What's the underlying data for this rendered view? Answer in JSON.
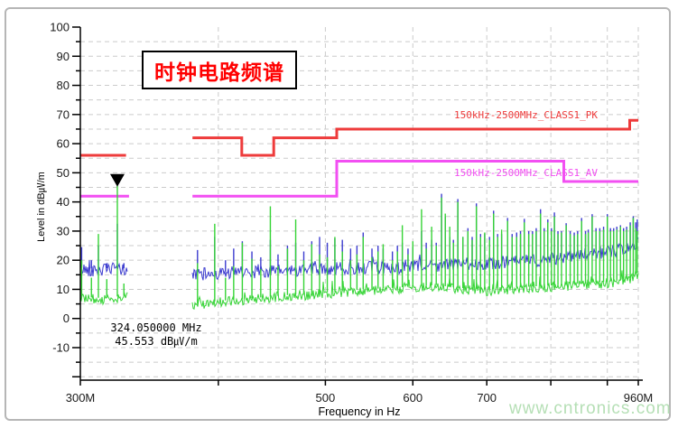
{
  "watermark": {
    "text": "www.cntronics.com",
    "color": "#b5dfb5"
  },
  "chart_data": {
    "type": "line",
    "title": "时钟电路频谱",
    "xlabel": "Frequency in Hz",
    "ylabel": "Level in dB㎶/m",
    "x_scale": "log",
    "x_range_mhz": [
      300,
      960
    ],
    "y_range": [
      -10,
      100
    ],
    "grid_step_db": 5,
    "style": {
      "grid_color": "#cbcbcb",
      "axis_color": "#000000",
      "background": "#ffffff"
    },
    "x_ticks": [
      {
        "mhz": 300,
        "label": "300M"
      },
      {
        "mhz": 400,
        "label": ""
      },
      {
        "mhz": 500,
        "label": "500"
      },
      {
        "mhz": 600,
        "label": "600"
      },
      {
        "mhz": 700,
        "label": "700"
      },
      {
        "mhz": 800,
        "label": ""
      },
      {
        "mhz": 900,
        "label": ""
      },
      {
        "mhz": 960,
        "label": "960M"
      }
    ],
    "y_ticks": [
      100,
      90,
      80,
      70,
      60,
      50,
      40,
      30,
      20,
      10,
      0,
      -10
    ],
    "limit_lines": [
      {
        "name": "peak-limit",
        "label": "150kHz-2500MHz_CLASS1_PK",
        "color": "#ee3b3b",
        "segments": [
          [
            [
              300,
              56
            ],
            [
              330,
              56
            ]
          ],
          [
            [
              379,
              62
            ],
            [
              420,
              62
            ],
            [
              420,
              56
            ],
            [
              449,
              56
            ],
            [
              449,
              62
            ],
            [
              512,
              62
            ],
            [
              512,
              65
            ],
            [
              943,
              65
            ],
            [
              943,
              68
            ],
            [
              960,
              68
            ]
          ]
        ]
      },
      {
        "name": "average-limit",
        "label": "150kHz-2500MHz_CLASS1_AV",
        "color": "#f24ff2",
        "segments": [
          [
            [
              300,
              42
            ],
            [
              332,
              42
            ]
          ],
          [
            [
              379,
              42
            ],
            [
              512,
              42
            ],
            [
              512,
              54
            ],
            [
              822,
              54
            ],
            [
              822,
              47
            ],
            [
              960,
              47
            ]
          ]
        ]
      }
    ],
    "marker": {
      "freq_mhz": 324.05,
      "level_db": 45.553,
      "freq_label": "324.050000 MHz",
      "level_label": "45.553 dB㎶/m"
    },
    "traces": [
      {
        "name": "peak-trace",
        "color": "#3c3ccf",
        "noise": 2.2,
        "extra_prob": 0.06,
        "extra_amp": 3.0,
        "segments": [
          {
            "range_mhz": [
              300,
              331
            ],
            "baseline": [
              [
                300,
                17
              ],
              [
                310,
                16.5
              ],
              [
                324,
                17
              ],
              [
                331,
                16.5
              ]
            ]
          },
          {
            "range_mhz": [
              379,
              960
            ],
            "baseline": [
              [
                379,
                15
              ],
              [
                400,
                15.5
              ],
              [
                430,
                16
              ],
              [
                470,
                16.5
              ],
              [
                500,
                17
              ],
              [
                540,
                17.5
              ],
              [
                580,
                17.5
              ],
              [
                620,
                18
              ],
              [
                660,
                18.5
              ],
              [
                700,
                19
              ],
              [
                740,
                19.5
              ],
              [
                780,
                20
              ],
              [
                820,
                21
              ],
              [
                860,
                22
              ],
              [
                900,
                23
              ],
              [
                930,
                23.5
              ],
              [
                948,
                24
              ],
              [
                960,
                26
              ]
            ]
          }
        ]
      },
      {
        "name": "average-trace",
        "color": "#35d435",
        "noise": 1.7,
        "extra_prob": 0.07,
        "extra_amp": 3.5,
        "segments": [
          {
            "range_mhz": [
              300,
              331
            ],
            "baseline": [
              [
                300,
                7
              ],
              [
                315,
                6.5
              ],
              [
                331,
                7.5
              ]
            ]
          },
          {
            "range_mhz": [
              379,
              960
            ],
            "baseline": [
              [
                379,
                4.5
              ],
              [
                400,
                5.5
              ],
              [
                430,
                6.5
              ],
              [
                460,
                7.5
              ],
              [
                500,
                8.5
              ],
              [
                540,
                9.5
              ],
              [
                575,
                10
              ],
              [
                600,
                10.5
              ],
              [
                630,
                11
              ],
              [
                660,
                10
              ],
              [
                700,
                9.5
              ],
              [
                730,
                10
              ],
              [
                770,
                10.5
              ],
              [
                810,
                11
              ],
              [
                850,
                11.5
              ],
              [
                890,
                12
              ],
              [
                920,
                12.5
              ],
              [
                945,
                13.5
              ],
              [
                960,
                15.5
              ]
            ]
          }
        ]
      }
    ],
    "peaks_mhz_avg_pk": [
      [
        300.8,
        20,
        24.5
      ],
      [
        307,
        14,
        20
      ],
      [
        311.5,
        29,
        25
      ],
      [
        317,
        13.5,
        19
      ],
      [
        324.05,
        45.553,
        32.5
      ],
      [
        328.5,
        12,
        19
      ],
      [
        383,
        19,
        23.5
      ],
      [
        397,
        32.5,
        28
      ],
      [
        406,
        14,
        20
      ],
      [
        413,
        18,
        24
      ],
      [
        420.5,
        26,
        26.5
      ],
      [
        429,
        20.5,
        23
      ],
      [
        437,
        17,
        21
      ],
      [
        445.8,
        38.5,
        27
      ],
      [
        453,
        18,
        22
      ],
      [
        462,
        24,
        25
      ],
      [
        470,
        34,
        26
      ],
      [
        478,
        20,
        23
      ],
      [
        486,
        25.5,
        26.5
      ],
      [
        494,
        22,
        28
      ],
      [
        502,
        21,
        26
      ],
      [
        510,
        28,
        27.5
      ],
      [
        518,
        23,
        27
      ],
      [
        527,
        20,
        24
      ],
      [
        534,
        22,
        25
      ],
      [
        541,
        28,
        29.5
      ],
      [
        551,
        21,
        24
      ],
      [
        558,
        23,
        25
      ],
      [
        564,
        25.5,
        24
      ],
      [
        575,
        20,
        23
      ],
      [
        581,
        23,
        25
      ],
      [
        587,
        32,
        26
      ],
      [
        594,
        22,
        24
      ],
      [
        600,
        26.5,
        24.5
      ],
      [
        611,
        37.5,
        30
      ],
      [
        617,
        24,
        26
      ],
      [
        624,
        31.5,
        27
      ],
      [
        630,
        25,
        26
      ],
      [
        637,
        41.5,
        42.8
      ],
      [
        642,
        36,
        35
      ],
      [
        648,
        31.5,
        28
      ],
      [
        653,
        26,
        27
      ],
      [
        659,
        40,
        41
      ],
      [
        666,
        28,
        28
      ],
      [
        673,
        30,
        31
      ],
      [
        679,
        27,
        28
      ],
      [
        685,
        38.5,
        39.5
      ],
      [
        691,
        28,
        29
      ],
      [
        697,
        29.5,
        29
      ],
      [
        704,
        27,
        28
      ],
      [
        710,
        36,
        37
      ],
      [
        716,
        28,
        29
      ],
      [
        722,
        30.5,
        29
      ],
      [
        731,
        33.5,
        34.5
      ],
      [
        738,
        28,
        29
      ],
      [
        745,
        28,
        29.5
      ],
      [
        751,
        29,
        30
      ],
      [
        757,
        33,
        34.2
      ],
      [
        764,
        29,
        30
      ],
      [
        770,
        29,
        30
      ],
      [
        776,
        30,
        31
      ],
      [
        783,
        36,
        37.5
      ],
      [
        789,
        30,
        31
      ],
      [
        795,
        33,
        34
      ],
      [
        801,
        30,
        31
      ],
      [
        806,
        35,
        36.4
      ],
      [
        812,
        29,
        30
      ],
      [
        818,
        29.5,
        30
      ],
      [
        826,
        32,
        32.7
      ],
      [
        833,
        29,
        30
      ],
      [
        840,
        28.5,
        29.5
      ],
      [
        846,
        29,
        30
      ],
      [
        853,
        33.5,
        34.5
      ],
      [
        860,
        29,
        30
      ],
      [
        865,
        29.5,
        30.5
      ],
      [
        872,
        35,
        35.8
      ],
      [
        879,
        30,
        31
      ],
      [
        886,
        30,
        31
      ],
      [
        893,
        30.5,
        31.5
      ],
      [
        900,
        35,
        35.8
      ],
      [
        906,
        30,
        31
      ],
      [
        912,
        30,
        31
      ],
      [
        918,
        30.5,
        31.5
      ],
      [
        925,
        31.5,
        32
      ],
      [
        931,
        30,
        31
      ],
      [
        937,
        30.5,
        31.5
      ],
      [
        944,
        32,
        33
      ],
      [
        950,
        34.5,
        35.1
      ],
      [
        955,
        31,
        33
      ],
      [
        958,
        30,
        34
      ]
    ]
  }
}
